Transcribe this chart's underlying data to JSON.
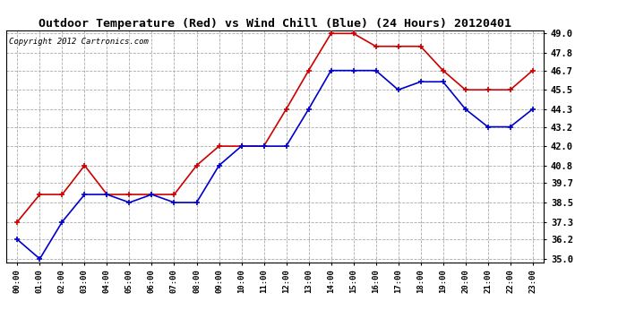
{
  "title": "Outdoor Temperature (Red) vs Wind Chill (Blue) (24 Hours) 20120401",
  "copyright": "Copyright 2012 Cartronics.com",
  "hours": [
    "00:00",
    "01:00",
    "02:00",
    "03:00",
    "04:00",
    "05:00",
    "06:00",
    "07:00",
    "08:00",
    "09:00",
    "10:00",
    "11:00",
    "12:00",
    "13:00",
    "14:00",
    "15:00",
    "16:00",
    "17:00",
    "18:00",
    "19:00",
    "20:00",
    "21:00",
    "22:00",
    "23:00"
  ],
  "red_temp": [
    37.3,
    39.0,
    39.0,
    40.8,
    39.0,
    39.0,
    39.0,
    39.0,
    40.8,
    42.0,
    42.0,
    42.0,
    44.3,
    46.7,
    49.0,
    49.0,
    48.2,
    48.2,
    48.2,
    46.7,
    45.5,
    45.5,
    45.5,
    46.7
  ],
  "blue_wc": [
    36.2,
    35.0,
    37.3,
    39.0,
    39.0,
    38.5,
    39.0,
    38.5,
    38.5,
    40.8,
    42.0,
    42.0,
    42.0,
    44.3,
    46.7,
    46.7,
    46.7,
    45.5,
    46.0,
    46.0,
    44.3,
    43.2,
    43.2,
    44.3
  ],
  "ylim_min": 35.0,
  "ylim_max": 49.0,
  "yticks": [
    35.0,
    36.2,
    37.3,
    38.5,
    39.7,
    40.8,
    42.0,
    43.2,
    44.3,
    45.5,
    46.7,
    47.8,
    49.0
  ],
  "red_color": "#cc0000",
  "blue_color": "#0000cc",
  "bg_color": "#ffffff",
  "grid_color": "#aaaaaa",
  "title_fontsize": 9.5,
  "copyright_fontsize": 6.5,
  "tick_fontsize": 7.5,
  "xtick_fontsize": 6.5
}
